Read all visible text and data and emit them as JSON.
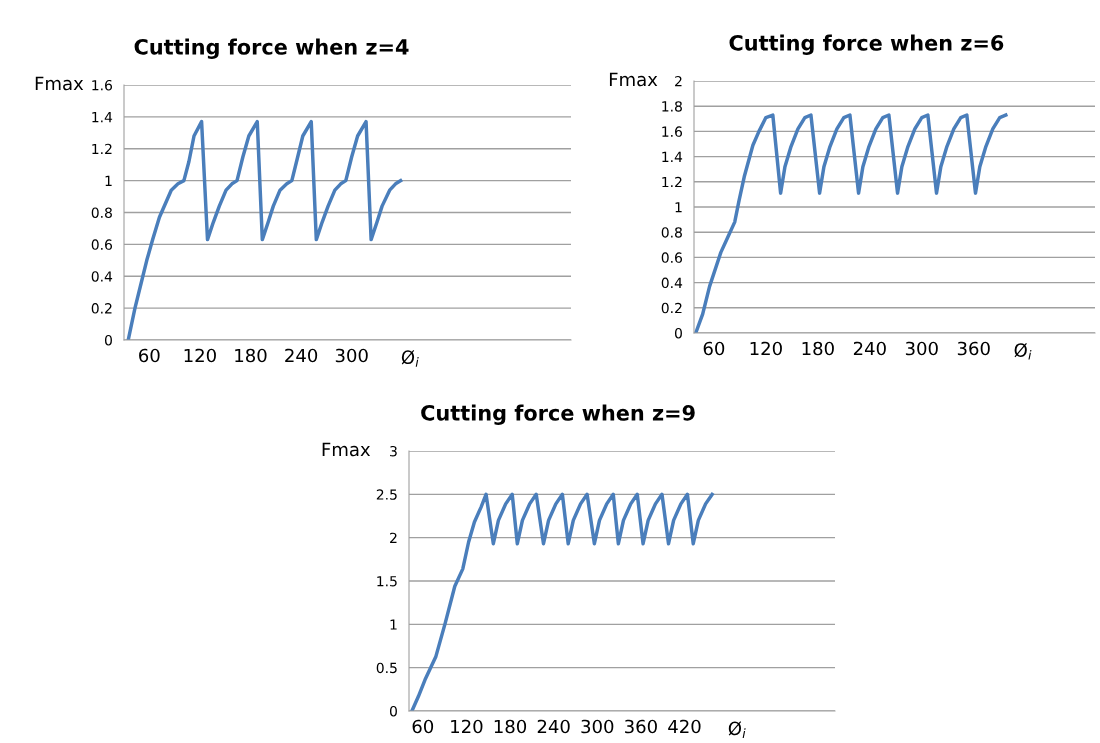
{
  "chart_data": [
    {
      "type": "line",
      "title": "Cutting force when z=4",
      "ylabel": "Fmax",
      "xlabel": "Ø$_{i}$",
      "grid": "y",
      "xlim": [
        30,
        560
      ],
      "xticks": [
        60,
        120,
        180,
        240,
        300
      ],
      "ylim": [
        0,
        1.6
      ],
      "yticks": [
        0,
        0.2,
        0.4,
        0.6,
        0.8,
        1,
        1.2,
        1.4,
        1.6
      ],
      "x": [
        35,
        43,
        50,
        57,
        64,
        72,
        86,
        94,
        101,
        107,
        113,
        122,
        129,
        136,
        143,
        151,
        158,
        164,
        171,
        178,
        188,
        194,
        201,
        207,
        215,
        223,
        229,
        236,
        242,
        252,
        258,
        265,
        272,
        280,
        287,
        293,
        300,
        307,
        317,
        323,
        330,
        336,
        345,
        352,
        358
      ],
      "series": [
        {
          "color": "#4a7ebb",
          "values": [
            0,
            0.2,
            0.35,
            0.5,
            0.63,
            0.77,
            0.94,
            0.98,
            1,
            1.12,
            1.28,
            1.37,
            0.63,
            0.74,
            0.84,
            0.94,
            0.98,
            1,
            1.15,
            1.28,
            1.37,
            0.63,
            0.74,
            0.84,
            0.94,
            0.98,
            1,
            1.15,
            1.28,
            1.37,
            0.63,
            0.74,
            0.84,
            0.94,
            0.98,
            1,
            1.15,
            1.28,
            1.37,
            0.63,
            0.74,
            0.84,
            0.94,
            0.98,
            1
          ]
        }
      ]
    },
    {
      "type": "line",
      "title": "Cutting force when z=6",
      "ylabel": "Fmax",
      "xlabel": "Ø$_{i}$",
      "grid": "y",
      "xlim": [
        37,
        500
      ],
      "xticks": [
        60,
        120,
        180,
        240,
        300,
        360
      ],
      "ylim": [
        0,
        2
      ],
      "yticks": [
        0,
        0.2,
        0.4,
        0.6,
        0.8,
        1,
        1.2,
        1.4,
        1.6,
        1.8,
        2
      ],
      "x": [
        39,
        47,
        55,
        68,
        76,
        84,
        89,
        95,
        105,
        112,
        120,
        128,
        137,
        142,
        149,
        157,
        165,
        172,
        182,
        187,
        194,
        202,
        210,
        217,
        227,
        232,
        239,
        247,
        255,
        262,
        272,
        277,
        284,
        292,
        300,
        307,
        317,
        322,
        329,
        337,
        345,
        352,
        362,
        367,
        374,
        382,
        390,
        397
      ],
      "series": [
        {
          "color": "#4a7ebb",
          "values": [
            0,
            0.15,
            0.37,
            0.64,
            0.76,
            0.88,
            1.05,
            1.24,
            1.49,
            1.6,
            1.71,
            1.73,
            1.11,
            1.32,
            1.48,
            1.62,
            1.71,
            1.73,
            1.11,
            1.32,
            1.48,
            1.62,
            1.71,
            1.73,
            1.11,
            1.32,
            1.48,
            1.62,
            1.71,
            1.73,
            1.11,
            1.32,
            1.48,
            1.62,
            1.71,
            1.73,
            1.11,
            1.32,
            1.48,
            1.62,
            1.71,
            1.73,
            1.11,
            1.32,
            1.48,
            1.62,
            1.71,
            1.73
          ]
        }
      ]
    },
    {
      "type": "line",
      "title": "Cutting force when z=9",
      "ylabel": "Fmax",
      "xlabel": "Ø$_{i}$",
      "grid": "y",
      "xlim": [
        41,
        627
      ],
      "xticks": [
        60,
        120,
        180,
        240,
        300,
        360,
        420
      ],
      "ylim": [
        0,
        3
      ],
      "yticks": [
        0,
        0.5,
        1,
        1.5,
        2,
        2.5,
        3
      ],
      "x": [
        45,
        54,
        63,
        78,
        91,
        104,
        115,
        123,
        131,
        140,
        147,
        157,
        164,
        174,
        183,
        190,
        197,
        207,
        216,
        226,
        233,
        243,
        252,
        260,
        267,
        277,
        286,
        296,
        303,
        313,
        322,
        329,
        336,
        346,
        355,
        363,
        370,
        380,
        389,
        398,
        405,
        415,
        424,
        432,
        439,
        449,
        458
      ],
      "series": [
        {
          "color": "#4a7ebb",
          "values": [
            0,
            0.17,
            0.36,
            0.63,
            1.02,
            1.44,
            1.64,
            1.95,
            2.18,
            2.35,
            2.5,
            1.93,
            2.2,
            2.39,
            2.5,
            1.93,
            2.2,
            2.39,
            2.5,
            1.93,
            2.2,
            2.39,
            2.5,
            1.93,
            2.2,
            2.39,
            2.5,
            1.93,
            2.2,
            2.39,
            2.5,
            1.93,
            2.2,
            2.39,
            2.5,
            1.93,
            2.2,
            2.39,
            2.5,
            1.93,
            2.2,
            2.39,
            2.5,
            1.93,
            2.2,
            2.39,
            2.5
          ]
        }
      ]
    }
  ]
}
